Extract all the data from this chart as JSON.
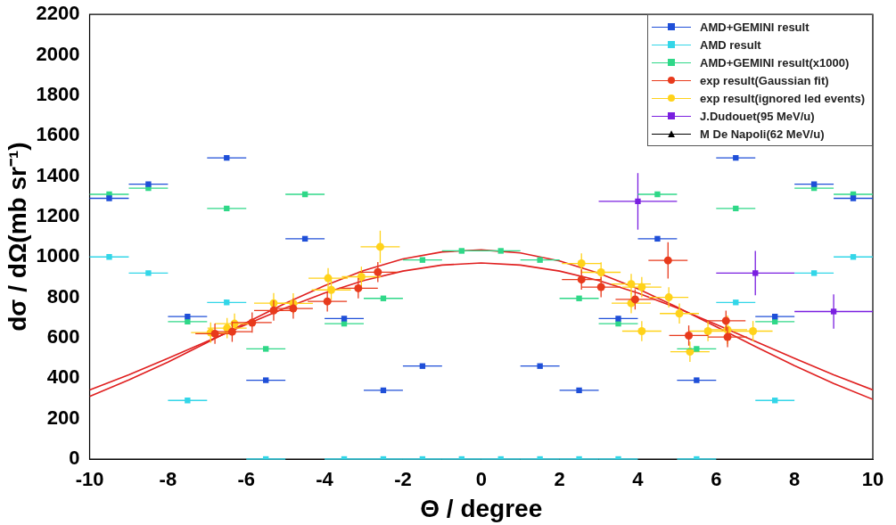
{
  "chart_data": {
    "type": "scatter",
    "xlabel": "Θ / degree",
    "ylabel": "dσ / dΩ(mb sr⁻¹)",
    "xlim": [
      -10,
      10
    ],
    "xticks": [
      -10,
      -8,
      -6,
      -4,
      -2,
      0,
      2,
      4,
      6,
      8,
      10
    ],
    "ylim": [
      0,
      2200
    ],
    "yticks": [
      0,
      200,
      400,
      600,
      800,
      1000,
      1200,
      1400,
      1600,
      1800,
      2000,
      2200
    ],
    "grid": false,
    "legend": "top right",
    "series": [
      {
        "name": "AMD+GEMINI result",
        "color": "#1f4fd8",
        "marker": "square",
        "x": [
          -9.5,
          -8.5,
          -7.5,
          -6.5,
          -5.5,
          -4.5,
          -3.5,
          -2.5,
          -1.5,
          1.5,
          2.5,
          3.5,
          4.5,
          5.5,
          6.5,
          7.5,
          8.5,
          9.5
        ],
        "values": [
          1290,
          1360,
          705,
          1490,
          390,
          1090,
          695,
          340,
          460,
          460,
          340,
          695,
          1090,
          390,
          1490,
          705,
          1360,
          1290
        ],
        "xerrors": [
          0.5,
          0.5,
          0.5,
          0.5,
          0.5,
          0.5,
          0.5,
          0.5,
          0.5,
          0.5,
          0.5,
          0.5,
          0.5,
          0.5,
          0.5,
          0.5,
          0.5,
          0.5
        ]
      },
      {
        "name": "AMD result",
        "color": "#33d6e8",
        "marker": "square",
        "x": [
          -9.5,
          -8.5,
          -7.5,
          -6.5,
          -5.5,
          -3.5,
          -2.5,
          -1.5,
          -0.5,
          0.5,
          1.5,
          2.5,
          3.5,
          5.5,
          6.5,
          7.5,
          8.5,
          9.5
        ],
        "values": [
          1000,
          920,
          290,
          775,
          0,
          0,
          0,
          0,
          0,
          0,
          0,
          0,
          0,
          0,
          775,
          290,
          920,
          1000
        ],
        "xerrors": [
          0.5,
          0.5,
          0.5,
          0.5,
          0.5,
          0.5,
          0.5,
          0.5,
          0.5,
          0.5,
          0.5,
          0.5,
          0.5,
          0.5,
          0.5,
          0.5,
          0.5,
          0.5
        ]
      },
      {
        "name": "AMD+GEMINI result(x1000)",
        "color": "#2fd888",
        "marker": "square",
        "x": [
          -9.5,
          -8.5,
          -7.5,
          -6.5,
          -5.5,
          -4.5,
          -3.5,
          -2.5,
          -1.5,
          -0.5,
          0.5,
          1.5,
          2.5,
          3.5,
          4.5,
          5.5,
          6.5,
          7.5,
          8.5,
          9.5
        ],
        "values": [
          1310,
          1340,
          680,
          1240,
          545,
          1310,
          670,
          795,
          985,
          1030,
          1030,
          985,
          795,
          670,
          1310,
          545,
          1240,
          680,
          1340,
          1310
        ],
        "xerrors": [
          0.5,
          0.5,
          0.5,
          0.5,
          0.5,
          0.5,
          0.5,
          0.5,
          0.5,
          0.5,
          0.5,
          0.5,
          0.5,
          0.5,
          0.5,
          0.5,
          0.5,
          0.5,
          0.5,
          0.5
        ]
      },
      {
        "name": "exp result(Gaussian fit)",
        "color": "#e83a1c",
        "marker": "circle",
        "x": [
          -6.8,
          -6.36,
          -5.85,
          -5.3,
          -4.8,
          -3.93,
          -3.14,
          -2.64,
          2.56,
          3.06,
          3.93,
          4.77,
          5.3,
          6.25,
          6.29
        ],
        "values": [
          620,
          630,
          675,
          735,
          745,
          780,
          845,
          925,
          888,
          851,
          790,
          983,
          611,
          684,
          604
        ],
        "xerrors": [
          0.5,
          0.5,
          0.5,
          0.5,
          0.5,
          0.5,
          0.5,
          0.5,
          0.5,
          0.5,
          0.5,
          0.5,
          0.5,
          0.5,
          0.5
        ],
        "errors": [
          50,
          50,
          50,
          50,
          50,
          50,
          50,
          50,
          50,
          50,
          50,
          90,
          50,
          50,
          50
        ]
      },
      {
        "name": "exp result(ignored led events)",
        "color": "#ffd21a",
        "marker": "circle",
        "x": [
          -6.91,
          -6.49,
          -6.3,
          -5.3,
          -4.8,
          -3.91,
          -3.83,
          -3.06,
          -2.58,
          2.56,
          3.06,
          3.83,
          3.83,
          4.1,
          4.1,
          4.79,
          5.06,
          5.33,
          5.79,
          6.29,
          6.94
        ],
        "values": [
          626,
          648,
          670,
          771,
          770,
          895,
          837,
          902,
          1050,
          968,
          924,
          866,
          771,
          851,
          633,
          800,
          720,
          531,
          633,
          640,
          633
        ],
        "xerrors": [
          0.5,
          0.5,
          0.5,
          0.5,
          0.5,
          0.5,
          0.5,
          0.5,
          0.5,
          0.5,
          0.5,
          0.5,
          0.5,
          0.5,
          0.5,
          0.5,
          0.5,
          0.5,
          0.5,
          0.5,
          0.5
        ],
        "errors": [
          50,
          50,
          50,
          50,
          50,
          50,
          50,
          50,
          80,
          50,
          50,
          50,
          50,
          50,
          50,
          50,
          50,
          50,
          50,
          70,
          50
        ]
      },
      {
        "name": "J.Dudouet(95 MeV/u)",
        "color": "#7a1fe0",
        "marker": "square",
        "x": [
          4,
          7,
          9
        ],
        "values": [
          1275,
          920,
          730
        ],
        "xerrors": [
          1,
          1,
          1
        ],
        "errors": [
          140,
          110,
          85
        ]
      },
      {
        "name": "M De Napoli(62 MeV/u)",
        "color": "#000000",
        "marker": "triangle"
      },
      {
        "type": "line",
        "color": "#e02020",
        "marker": "none",
        "x": [
          -10,
          -9,
          -8,
          -7,
          -6,
          -5,
          -4,
          -3,
          -2,
          -1,
          0,
          1,
          2,
          3,
          4,
          5,
          6,
          7,
          8,
          9,
          10
        ],
        "values": [
          310,
          391,
          480,
          577,
          675,
          771,
          858,
          933,
          990,
          1025,
          1035,
          1020,
          980,
          920,
          842,
          752,
          655,
          557,
          462,
          374,
          295
        ]
      },
      {
        "type": "line",
        "color": "#e02020",
        "marker": "none",
        "x": [
          -10,
          -9,
          -8,
          -7,
          -6,
          -5,
          -4,
          -3,
          -2,
          -1,
          0,
          1,
          2,
          3,
          4,
          5,
          6,
          7,
          8,
          9,
          10
        ],
        "values": [
          342,
          417,
          498,
          582,
          666,
          748,
          821,
          883,
          930,
          960,
          970,
          960,
          930,
          883,
          821,
          748,
          666,
          582,
          498,
          417,
          342
        ]
      }
    ]
  }
}
